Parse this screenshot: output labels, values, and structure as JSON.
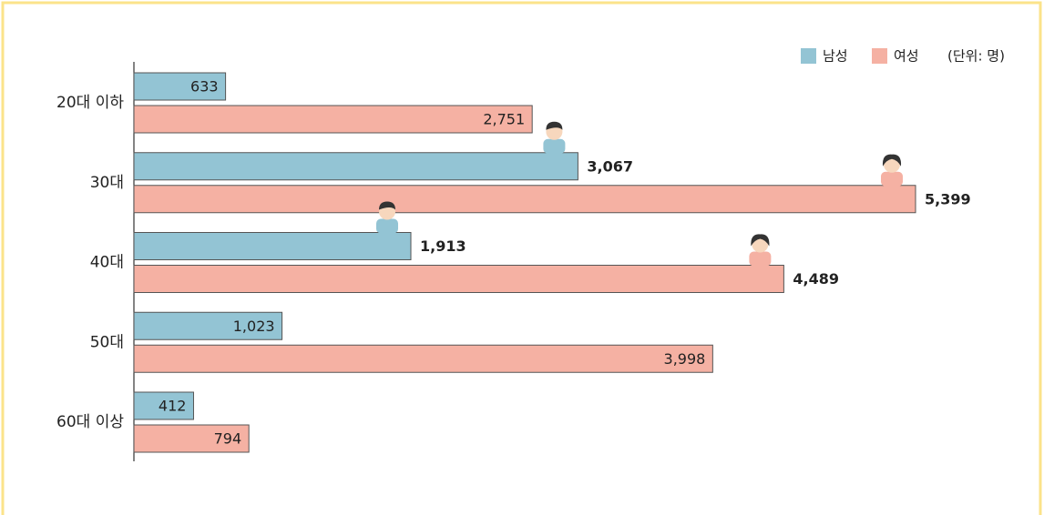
{
  "chart_data": {
    "type": "hbar",
    "unit": "(단위: 명)",
    "categories": [
      "20대 이하",
      "30대",
      "40대",
      "50대",
      "60대 이상"
    ],
    "series": [
      {
        "name": "남성",
        "color": "#93c4d4",
        "values": [
          633,
          3067,
          1913,
          1023,
          412
        ],
        "value_labels": [
          "633",
          "3,067",
          "1,913",
          "1,023",
          "412"
        ]
      },
      {
        "name": "여성",
        "color": "#f5b1a3",
        "values": [
          2751,
          5399,
          4489,
          3998,
          794
        ],
        "value_labels": [
          "2,751",
          "5,399",
          "4,489",
          "3,998",
          "794"
        ]
      }
    ],
    "legend": "top-right"
  }
}
